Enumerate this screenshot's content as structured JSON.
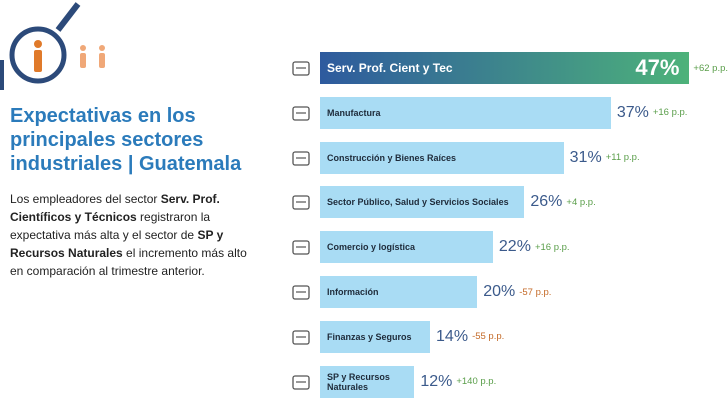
{
  "chart_data": {
    "type": "bar",
    "title": "Expectativas en los principales sectores industriales | Guatemala",
    "description": [
      {
        "text": "Los empleadores del sector ",
        "bold": false
      },
      {
        "text": "Serv. Prof. Científicos y Técnicos",
        "bold": true
      },
      {
        "text": " registraron la expectativa más alta y el sector de ",
        "bold": false
      },
      {
        "text": "SP y Recursos Naturales",
        "bold": true
      },
      {
        "text": " el incremento más alto en comparación al trimestre anterior.",
        "bold": false
      }
    ],
    "categories": [
      "Serv. Prof. Cient y Tec",
      "Manufactura",
      "Construcción y Bienes Raíces",
      "Sector Público, Salud y Servicios Sociales",
      "Comercio y logística",
      "Información",
      "Finanzas y Seguros",
      "SP y Recursos Naturales"
    ],
    "values": [
      47,
      37,
      31,
      26,
      22,
      20,
      14,
      12
    ],
    "value_labels": [
      "47%",
      "37%",
      "31%",
      "26%",
      "22%",
      "20%",
      "14%",
      "12%"
    ],
    "changes": [
      62,
      16,
      11,
      4,
      16,
      -57,
      -55,
      140
    ],
    "change_labels": [
      "+62 p.p.",
      "+16 p.p.",
      "+11 p.p.",
      "+4 p.p.",
      "+16 p.p.",
      "-57 p.p.",
      "-55 p.p.",
      "+140 p.p."
    ],
    "color": "#a9dcf4",
    "highlight_colors": [
      "#2e5a9e",
      "#4db27a"
    ],
    "positive_color": "#5a9e4a",
    "negative_color": "#c46a28"
  }
}
